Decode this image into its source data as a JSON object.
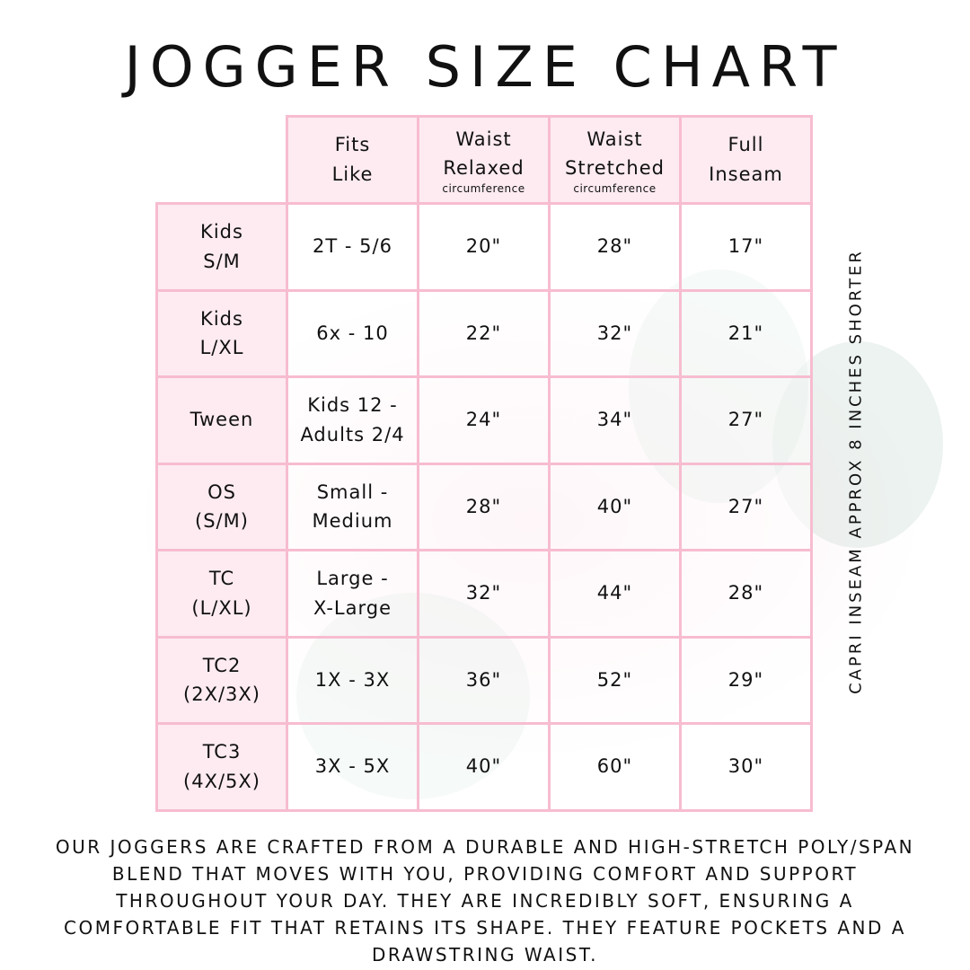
{
  "title": "JOGGER SIZE CHART",
  "headers": [
    {
      "line1": "Fits",
      "line2": "Like",
      "sub": ""
    },
    {
      "line1": "Waist",
      "line2": "Relaxed",
      "sub": "circumference"
    },
    {
      "line1": "Waist",
      "line2": "Stretched",
      "sub": "circumference"
    },
    {
      "line1": "Full",
      "line2": "Inseam",
      "sub": ""
    }
  ],
  "rows": [
    {
      "size1": "Kids",
      "size2": "S/M",
      "fit1": "2T - 5/6",
      "fit2": "",
      "relaxed": "20\"",
      "stretched": "28\"",
      "inseam": "17\""
    },
    {
      "size1": "Kids",
      "size2": "L/XL",
      "fit1": "6x - 10",
      "fit2": "",
      "relaxed": "22\"",
      "stretched": "32\"",
      "inseam": "21\""
    },
    {
      "size1": "Tween",
      "size2": "",
      "fit1": "Kids 12 -",
      "fit2": "Adults 2/4",
      "relaxed": "24\"",
      "stretched": "34\"",
      "inseam": "27\""
    },
    {
      "size1": "OS",
      "size2": "(S/M)",
      "fit1": "Small -",
      "fit2": "Medium",
      "relaxed": "28\"",
      "stretched": "40\"",
      "inseam": "27\""
    },
    {
      "size1": "TC",
      "size2": "(L/XL)",
      "fit1": "Large -",
      "fit2": "X-Large",
      "relaxed": "32\"",
      "stretched": "44\"",
      "inseam": "28\""
    },
    {
      "size1": "TC2",
      "size2": "(2X/3X)",
      "fit1": "1X - 3X",
      "fit2": "",
      "relaxed": "36\"",
      "stretched": "52\"",
      "inseam": "29\""
    },
    {
      "size1": "TC3",
      "size2": "(4X/5X)",
      "fit1": "3X - 5X",
      "fit2": "",
      "relaxed": "40\"",
      "stretched": "60\"",
      "inseam": "30\""
    }
  ],
  "side_note": "CAPRI INSEAM APPROX 8 INCHES SHORTER",
  "description": "Our joggers are crafted from a durable and high-stretch poly/span blend that moves with you, providing comfort and support throughout your day. They are incredibly soft, ensuring a comfortable fit that retains its shape. They feature pockets and a drawstring waist.",
  "colors": {
    "border": "#f7bcd0",
    "header_fill": "#fde9f0"
  }
}
